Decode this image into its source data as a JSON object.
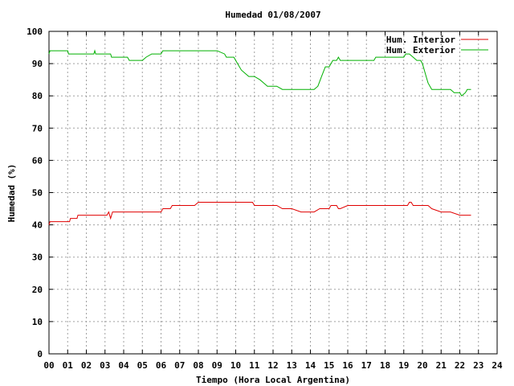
{
  "chart_data": {
    "type": "line",
    "title": "Humedad 01/08/2007",
    "xlabel": "Tiempo (Hora Local Argentina)",
    "ylabel": "Humedad (%)",
    "xlim": [
      0,
      24
    ],
    "ylim": [
      0,
      100
    ],
    "x_ticks": [
      "00",
      "01",
      "02",
      "03",
      "04",
      "05",
      "06",
      "07",
      "08",
      "09",
      "10",
      "11",
      "12",
      "13",
      "14",
      "15",
      "16",
      "17",
      "18",
      "19",
      "20",
      "21",
      "22",
      "23",
      "24"
    ],
    "y_ticks": [
      "0",
      "10",
      "20",
      "30",
      "40",
      "50",
      "60",
      "70",
      "80",
      "90",
      "100"
    ],
    "grid": true,
    "legend_position": "top-right",
    "series": [
      {
        "name": "Hum. Interior",
        "color": "#e00000",
        "x": [
          0,
          0.05,
          0.1,
          1.1,
          1.15,
          1.5,
          1.55,
          2.5,
          3.0,
          3.1,
          3.2,
          3.3,
          3.4,
          3.5,
          5.0,
          6.0,
          6.1,
          6.2,
          6.5,
          6.6,
          7.0,
          7.1,
          7.5,
          7.8,
          8.0,
          8.1,
          8.5,
          9.0,
          9.5,
          10.0,
          10.5,
          10.9,
          11.0,
          11.2,
          11.5,
          12.0,
          12.2,
          12.5,
          13.0,
          13.5,
          13.9,
          14.0,
          14.2,
          14.5,
          14.8,
          15.0,
          15.1,
          15.4,
          15.5,
          15.6,
          16.0,
          16.5,
          17.0,
          18.0,
          18.5,
          19.0,
          19.2,
          19.3,
          19.4,
          19.5,
          20.0,
          20.3,
          20.5,
          21.0,
          21.5,
          22.0,
          22.5,
          22.6
        ],
        "values": [
          40,
          41,
          41,
          41,
          42,
          42,
          43,
          43,
          43,
          43,
          44,
          42,
          44,
          44,
          44,
          44,
          45,
          45,
          45,
          46,
          46,
          46,
          46,
          46,
          47,
          47,
          47,
          47,
          47,
          47,
          47,
          47,
          46,
          46,
          46,
          46,
          46,
          45,
          45,
          44,
          44,
          44,
          44,
          45,
          45,
          45,
          46,
          46,
          45,
          45,
          46,
          46,
          46,
          46,
          46,
          46,
          46,
          47,
          47,
          46,
          46,
          46,
          45,
          44,
          44,
          43,
          43,
          43
        ]
      },
      {
        "name": "Hum. Exterior",
        "color": "#00b000",
        "x": [
          0,
          0.05,
          0.1,
          1.0,
          1.05,
          2.0,
          2.4,
          2.45,
          2.5,
          3.0,
          3.3,
          3.35,
          4.2,
          4.3,
          4.7,
          5.0,
          5.2,
          5.5,
          6.0,
          6.1,
          6.5,
          7.0,
          8.0,
          9.0,
          9.4,
          9.5,
          9.9,
          10.1,
          10.3,
          10.5,
          10.7,
          11.0,
          11.3,
          11.5,
          11.7,
          12.0,
          12.2,
          12.5,
          13.0,
          13.5,
          14.0,
          14.2,
          14.4,
          14.6,
          14.8,
          15.0,
          15.2,
          15.4,
          15.5,
          15.6,
          16.0,
          16.5,
          17.0,
          17.4,
          17.5,
          18.0,
          18.5,
          19.0,
          19.1,
          19.3,
          19.5,
          19.7,
          19.9,
          20.0,
          20.2,
          20.3,
          20.5,
          21.0,
          21.5,
          21.7,
          22.0,
          22.1,
          22.3,
          22.4,
          22.5,
          22.6
        ],
        "values": [
          93,
          94,
          94,
          94,
          93,
          93,
          93,
          94,
          93,
          93,
          93,
          92,
          92,
          91,
          91,
          91,
          92,
          93,
          93,
          94,
          94,
          94,
          94,
          94,
          93,
          92,
          92,
          90,
          88,
          87,
          86,
          86,
          85,
          84,
          83,
          83,
          83,
          82,
          82,
          82,
          82,
          82,
          83,
          86,
          89,
          89,
          91,
          91,
          92,
          91,
          91,
          91,
          91,
          91,
          92,
          92,
          92,
          92,
          93,
          93,
          92,
          91,
          91,
          90,
          86,
          84,
          82,
          82,
          82,
          81,
          81,
          80,
          81,
          82,
          82,
          82
        ]
      }
    ]
  }
}
